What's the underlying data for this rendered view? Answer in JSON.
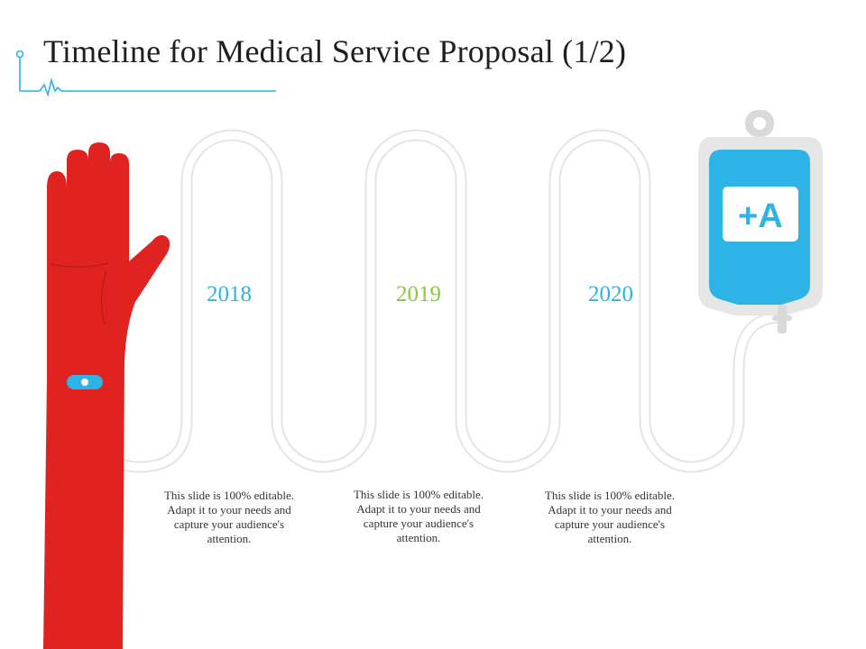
{
  "slide": {
    "title": "Timeline for Medical Service Proposal (1/2)"
  },
  "iv_bag": {
    "label": "+A",
    "icon": "iv-bag-icon"
  },
  "arm": {
    "icon": "raised-arm-icon"
  },
  "timeline": [
    {
      "year": "2018",
      "color": "#2db3e6",
      "text": "This slide is 100% editable. Adapt it to your needs and capture your audience's attention."
    },
    {
      "year": "2019",
      "color": "#8cc63f",
      "text": "This slide is 100% editable. Adapt it to your needs and capture your audience's attention."
    },
    {
      "year": "2020",
      "color": "#2db3e6",
      "text": "This slide is 100% editable. Adapt it to your needs and capture your audience's attention."
    }
  ],
  "colors": {
    "accent_blue": "#2db3e6",
    "accent_green": "#8cc63f",
    "arm_red": "#e02320",
    "tube_gray": "#e4e4e4"
  }
}
